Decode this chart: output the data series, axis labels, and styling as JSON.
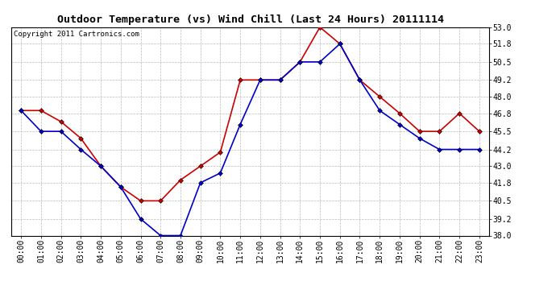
{
  "title": "Outdoor Temperature (vs) Wind Chill (Last 24 Hours) 20111114",
  "copyright": "Copyright 2011 Cartronics.com",
  "hours": [
    "00:00",
    "01:00",
    "02:00",
    "03:00",
    "04:00",
    "05:00",
    "06:00",
    "07:00",
    "08:00",
    "09:00",
    "10:00",
    "11:00",
    "12:00",
    "13:00",
    "14:00",
    "15:00",
    "16:00",
    "17:00",
    "18:00",
    "19:00",
    "20:00",
    "21:00",
    "22:00",
    "23:00"
  ],
  "temp": [
    47.0,
    47.0,
    46.2,
    45.0,
    43.0,
    41.5,
    40.5,
    40.5,
    42.0,
    43.0,
    44.0,
    49.2,
    49.2,
    49.2,
    50.5,
    53.0,
    51.8,
    49.2,
    48.0,
    46.8,
    45.5,
    45.5,
    46.8,
    45.5
  ],
  "wind_chill": [
    47.0,
    45.5,
    45.5,
    44.2,
    43.0,
    41.5,
    39.2,
    38.0,
    38.0,
    41.8,
    42.5,
    46.0,
    49.2,
    49.2,
    50.5,
    50.5,
    51.8,
    49.2,
    47.0,
    46.0,
    45.0,
    44.2,
    44.2,
    44.2
  ],
  "ylim": [
    38.0,
    53.0
  ],
  "yticks": [
    38.0,
    39.2,
    40.5,
    41.8,
    43.0,
    44.2,
    45.5,
    46.8,
    48.0,
    49.2,
    50.5,
    51.8,
    53.0
  ],
  "temp_color": "#cc0000",
  "wind_chill_color": "#0000cc",
  "bg_color": "#ffffff",
  "grid_color": "#bbbbbb",
  "title_fontsize": 9.5,
  "copyright_fontsize": 6.5,
  "tick_fontsize": 7,
  "marker": "D",
  "marker_size": 3,
  "line_width": 1.2
}
